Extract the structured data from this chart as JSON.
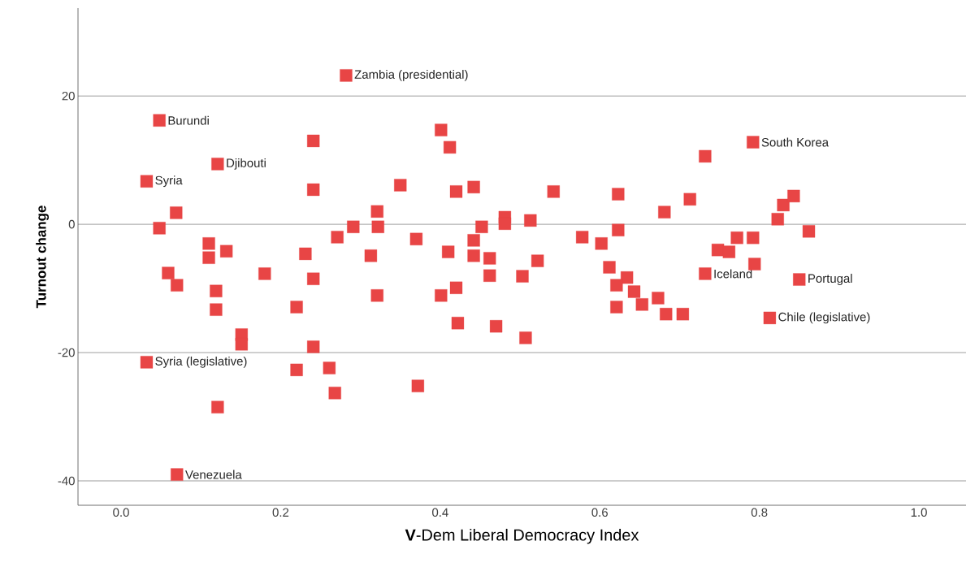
{
  "chart_data": {
    "type": "scatter",
    "xlabel": "**V**-Dem Liberal Democracy Index",
    "ylabel": "**Turnout change**",
    "xlim": [
      -0.054,
      1.059
    ],
    "ylim": [
      -43.8,
      33.7
    ],
    "xticks": [
      {
        "value": 0,
        "label": "0.0"
      },
      {
        "value": 0.2,
        "label": "0.2"
      },
      {
        "value": 0.4,
        "label": "0.4"
      },
      {
        "value": 0.6,
        "label": "0.6"
      },
      {
        "value": 0.8,
        "label": "0.8"
      },
      {
        "value": 1,
        "label": "1.0"
      }
    ],
    "yticks": [
      -40,
      -20,
      0,
      20
    ],
    "grid": "y",
    "marker": "square",
    "series": [
      {
        "color": "#e84545",
        "x": [
          0.032,
          0.048,
          0.121,
          0.048,
          0.069,
          0.059,
          0.07,
          0.032,
          0.11,
          0.11,
          0.132,
          0.119,
          0.119,
          0.151,
          0.151,
          0.121,
          0.07,
          0.18,
          0.241,
          0.241,
          0.231,
          0.241,
          0.22,
          0.241,
          0.22,
          0.261,
          0.268,
          0.282,
          0.271,
          0.291,
          0.321,
          0.322,
          0.313,
          0.321,
          0.35,
          0.37,
          0.372,
          0.401,
          0.412,
          0.42,
          0.442,
          0.41,
          0.442,
          0.452,
          0.442,
          0.401,
          0.42,
          0.462,
          0.462,
          0.422,
          0.47,
          0.481,
          0.481,
          0.513,
          0.503,
          0.522,
          0.507,
          0.542,
          0.578,
          0.602,
          0.623,
          0.623,
          0.681,
          0.713,
          0.732,
          0.792,
          0.612,
          0.634,
          0.621,
          0.643,
          0.621,
          0.653,
          0.673,
          0.683,
          0.704,
          0.732,
          0.748,
          0.762,
          0.772,
          0.792,
          0.794,
          0.823,
          0.83,
          0.843,
          0.862,
          0.85,
          0.813
        ],
        "values": [
          6.7,
          16.2,
          9.4,
          -0.6,
          1.8,
          -7.6,
          -9.5,
          -21.5,
          -3.0,
          -5.2,
          -4.2,
          -10.4,
          -13.3,
          -17.2,
          -18.7,
          -28.5,
          -39.0,
          -7.7,
          13.0,
          5.4,
          -4.6,
          -8.5,
          -12.9,
          -19.1,
          -22.7,
          -22.4,
          -26.3,
          23.2,
          -2.0,
          -0.4,
          2.0,
          -0.4,
          -4.9,
          -11.1,
          6.1,
          -2.3,
          -25.2,
          14.7,
          12.0,
          5.1,
          5.8,
          -4.3,
          -2.5,
          -0.4,
          -4.9,
          -11.1,
          -9.9,
          -5.3,
          -8.0,
          -15.4,
          -15.9,
          1.1,
          0.1,
          0.6,
          -8.1,
          -5.7,
          -17.7,
          5.1,
          -2.0,
          -3.0,
          4.7,
          -0.9,
          1.9,
          3.9,
          10.6,
          12.8,
          -6.7,
          -8.3,
          -9.5,
          -10.5,
          -12.9,
          -12.5,
          -11.5,
          -14.0,
          -14.0,
          -7.7,
          -4.0,
          -4.3,
          -2.1,
          -2.1,
          -6.2,
          0.8,
          3.0,
          4.4,
          -1.1,
          -8.6,
          -14.6
        ]
      }
    ],
    "annotations": [
      {
        "text": "Syria",
        "x": 0.032,
        "y": 6.7
      },
      {
        "text": "Burundi",
        "x": 0.048,
        "y": 16.2
      },
      {
        "text": "Djibouti",
        "x": 0.121,
        "y": 9.4
      },
      {
        "text": "Syria (legislative)",
        "x": 0.032,
        "y": -21.5
      },
      {
        "text": "Venezuela",
        "x": 0.07,
        "y": -39.0
      },
      {
        "text": "Zambia (presidential)",
        "x": 0.282,
        "y": 23.2
      },
      {
        "text": "South Korea",
        "x": 0.792,
        "y": 12.8
      },
      {
        "text": "Iceland",
        "x": 0.732,
        "y": -7.7
      },
      {
        "text": "Portugal",
        "x": 0.85,
        "y": -8.6
      },
      {
        "text": "Chile (legislative)",
        "x": 0.813,
        "y": -14.6
      }
    ]
  }
}
